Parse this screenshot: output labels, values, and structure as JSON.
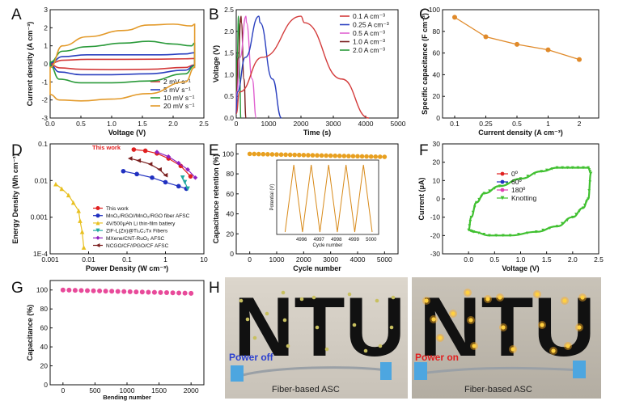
{
  "panel_labels": {
    "a": "A",
    "b": "B",
    "c": "C",
    "d": "D",
    "e": "E",
    "f": "F",
    "g": "G",
    "h": "H"
  },
  "chart_data": [
    {
      "panel": "A",
      "type": "line",
      "xlabel": "Voltage (V)",
      "ylabel": "Current density (A cm⁻³)",
      "xlim": [
        0,
        2.5
      ],
      "ylim": [
        -3,
        3
      ],
      "xticks": [
        "0.0",
        "0.5",
        "1.0",
        "1.5",
        "2.0",
        "2.5"
      ],
      "yticks": [
        "-3",
        "-2",
        "-1",
        "0",
        "1",
        "2",
        "3"
      ],
      "legend_position": "bottom-right",
      "series": [
        {
          "name": "2 mV s⁻¹",
          "color": "#d33a3a",
          "scale": 0.14,
          "upper": [
            [
              0,
              0.02
            ],
            [
              0.2,
              0.2
            ],
            [
              0.6,
              0.25
            ],
            [
              1.2,
              0.25
            ],
            [
              1.8,
              0.26
            ],
            [
              2.2,
              0.28
            ],
            [
              2.35,
              0.3
            ]
          ],
          "lower": [
            [
              2.35,
              -0.05
            ],
            [
              2.2,
              -0.2
            ],
            [
              1.6,
              -0.3
            ],
            [
              1.0,
              -0.32
            ],
            [
              0.5,
              -0.3
            ],
            [
              0.15,
              -0.22
            ],
            [
              0,
              -0.02
            ]
          ]
        },
        {
          "name": "5 mV s⁻¹",
          "color": "#2a3fbf",
          "scale": 0.3,
          "upper": [
            [
              0,
              0.05
            ],
            [
              0.2,
              0.4
            ],
            [
              0.6,
              0.5
            ],
            [
              1.2,
              0.5
            ],
            [
              1.8,
              0.5
            ],
            [
              2.2,
              0.55
            ],
            [
              2.35,
              0.62
            ]
          ],
          "lower": [
            [
              2.35,
              -0.08
            ],
            [
              2.2,
              -0.35
            ],
            [
              1.6,
              -0.55
            ],
            [
              1.0,
              -0.6
            ],
            [
              0.5,
              -0.6
            ],
            [
              0.15,
              -0.45
            ],
            [
              0,
              -0.05
            ]
          ]
        },
        {
          "name": "10 mV s⁻¹",
          "color": "#2a9a3a",
          "scale": 0.55,
          "upper": [
            [
              0,
              0.1
            ],
            [
              0.2,
              0.7
            ],
            [
              0.6,
              0.95
            ],
            [
              1.2,
              1.15
            ],
            [
              1.6,
              1.25
            ],
            [
              2.0,
              1.1
            ],
            [
              2.3,
              1.0
            ],
            [
              2.35,
              1.15
            ]
          ],
          "lower": [
            [
              2.35,
              -0.1
            ],
            [
              2.2,
              -0.55
            ],
            [
              1.6,
              -0.95
            ],
            [
              1.0,
              -1.05
            ],
            [
              0.5,
              -1.05
            ],
            [
              0.15,
              -0.85
            ],
            [
              0,
              -0.1
            ]
          ]
        },
        {
          "name": "20 mV s⁻¹",
          "color": "#e39a2a",
          "scale": 1.0,
          "upper": [
            [
              0,
              -0.2
            ],
            [
              0.2,
              1.0
            ],
            [
              0.6,
              1.5
            ],
            [
              1.2,
              1.85
            ],
            [
              1.6,
              2.15
            ],
            [
              2.0,
              2.2
            ],
            [
              2.3,
              2.1
            ],
            [
              2.35,
              2.2
            ]
          ],
          "lower": [
            [
              2.35,
              -0.2
            ],
            [
              2.2,
              -1.0
            ],
            [
              1.6,
              -1.65
            ],
            [
              1.0,
              -1.95
            ],
            [
              0.5,
              -2.05
            ],
            [
              0.15,
              -2.0
            ],
            [
              0,
              -1.7
            ]
          ]
        }
      ]
    },
    {
      "panel": "B",
      "type": "line",
      "xlabel": "Time (s)",
      "ylabel": "Voltage (V)",
      "xlim": [
        0,
        5000
      ],
      "ylim": [
        0,
        2.5
      ],
      "xticks": [
        "0",
        "1000",
        "2000",
        "3000",
        "4000",
        "5000"
      ],
      "yticks": [
        "0.0",
        "0.5",
        "1.0",
        "1.5",
        "2.0",
        "2.5"
      ],
      "legend_position": "top-right",
      "series": [
        {
          "name": "0.1 A cm⁻³",
          "color": "#d33a3a",
          "charge_end": 2000,
          "discharge_end": 4100
        },
        {
          "name": "0.25 A cm⁻³",
          "color": "#2a3fbf",
          "charge_end": 700,
          "discharge_end": 1400
        },
        {
          "name": "0.5 A cm⁻³",
          "color": "#e060d0",
          "charge_end": 300,
          "discharge_end": 620
        },
        {
          "name": "1.0 A cm⁻³",
          "color": "#7a1e1e",
          "charge_end": 150,
          "discharge_end": 300
        },
        {
          "name": "2.0 A cm⁻³",
          "color": "#2a9a3a",
          "charge_end": 70,
          "discharge_end": 140
        }
      ],
      "v_max": 2.35
    },
    {
      "panel": "C",
      "type": "line",
      "xlabel": "Current density (A cm⁻³)",
      "ylabel": "Specific capacitance (F cm⁻³)",
      "ylim": [
        0,
        100
      ],
      "categories": [
        "0.1",
        "0.25",
        "0.5",
        "1",
        "2"
      ],
      "yticks": [
        "0",
        "20",
        "40",
        "60",
        "80",
        "100"
      ],
      "color": "#e08a2a",
      "values": [
        93,
        75,
        68,
        63,
        54
      ]
    },
    {
      "panel": "D",
      "type": "scatter",
      "xlabel": "Power Density (W cm⁻³)",
      "ylabel": "Energy Density (Wh cm⁻³)",
      "xlim_log": [
        0.001,
        10
      ],
      "ylim_log": [
        0.0001,
        0.1
      ],
      "xticks": [
        "0.001",
        "0.01",
        "0.1",
        "1",
        "10"
      ],
      "yticks": [
        "1E-4",
        "0.001",
        "0.01",
        "0.1"
      ],
      "annotation": "This work",
      "legend_position": "bottom-left",
      "series": [
        {
          "name": "This work",
          "color": "#e02020",
          "marker": "circle",
          "points": [
            [
              0.15,
              0.07
            ],
            [
              0.3,
              0.065
            ],
            [
              0.6,
              0.055
            ],
            [
              1.2,
              0.04
            ],
            [
              2.5,
              0.025
            ],
            [
              4.5,
              0.013
            ]
          ]
        },
        {
          "name": "MnO₂/RGO//MnO₂/RGO fiber AFSC",
          "color": "#2030c0",
          "marker": "circle",
          "points": [
            [
              0.08,
              0.018
            ],
            [
              0.18,
              0.015
            ],
            [
              0.45,
              0.012
            ],
            [
              1.0,
              0.009
            ],
            [
              2.2,
              0.007
            ],
            [
              3.5,
              0.006
            ]
          ]
        },
        {
          "name": "4V/500μAh Li thin-film battery",
          "color": "#e8c020",
          "marker": "triangle",
          "points": [
            [
              0.0014,
              0.008
            ],
            [
              0.002,
              0.006
            ],
            [
              0.003,
              0.004
            ],
            [
              0.004,
              0.0025
            ],
            [
              0.0055,
              0.0015
            ],
            [
              0.006,
              0.0008
            ],
            [
              0.0068,
              0.0004
            ],
            [
              0.0075,
              0.00015
            ]
          ]
        },
        {
          "name": "ZIF-L(Zn)@Ti₃C₂Tx Fibers",
          "color": "#20a8a0",
          "marker": "triangle-down",
          "points": [
            [
              2.8,
              0.012
            ],
            [
              3.2,
              0.009
            ],
            [
              3.8,
              0.006
            ]
          ]
        },
        {
          "name": "MXene/CNT-RuO₂ AFSC",
          "color": "#9020c0",
          "marker": "diamond",
          "points": [
            [
              0.6,
              0.06
            ],
            [
              1.2,
              0.045
            ],
            [
              2.2,
              0.03
            ],
            [
              3.8,
              0.02
            ],
            [
              6,
              0.012
            ]
          ]
        },
        {
          "name": "NCGO/CF//PGO/CF AFSC",
          "color": "#7a1e1e",
          "marker": "triangle-left",
          "points": [
            [
              0.12,
              0.04
            ],
            [
              0.2,
              0.035
            ],
            [
              0.4,
              0.028
            ],
            [
              0.7,
              0.02
            ],
            [
              1.0,
              0.014
            ]
          ]
        }
      ]
    },
    {
      "panel": "E",
      "type": "scatter",
      "xlabel": "Cycle number",
      "ylabel": "Capacitance retention (%)",
      "xlim": [
        -500,
        5500
      ],
      "ylim": [
        0,
        110
      ],
      "xticks": [
        "0",
        "1000",
        "2000",
        "3000",
        "4000",
        "5000"
      ],
      "yticks": [
        "0",
        "20",
        "40",
        "60",
        "80",
        "100"
      ],
      "color": "#e8a020",
      "retention_start": 100,
      "retention_end": 97,
      "inset": {
        "xlabel": "Cycle number",
        "ylabel": "Potential (V)",
        "xticks": [
          "4996",
          "4997",
          "4998",
          "4999",
          "5000"
        ],
        "color": "#d88a1a",
        "cycles": 5,
        "v_max": 2.35
      }
    },
    {
      "panel": "F",
      "type": "line",
      "xlabel": "Voltage (V)",
      "ylabel": "Current (μA)",
      "xlim": [
        -0.5,
        2.5
      ],
      "ylim": [
        -30,
        30
      ],
      "xticks": [
        "0.0",
        "0.5",
        "1.0",
        "1.5",
        "2.0",
        "2.5"
      ],
      "yticks": [
        "-30",
        "-20",
        "-10",
        "0",
        "10",
        "20",
        "30"
      ],
      "legend_position": "center",
      "series": [
        {
          "name": "0º",
          "color": "#e02020",
          "marker": "circle"
        },
        {
          "name": "60º",
          "color": "#2030c0",
          "marker": "circle"
        },
        {
          "name": "180º",
          "color": "#e040b0",
          "marker": "circle"
        },
        {
          "name": "Knotting",
          "color": "#40c030",
          "marker": "triangle-down"
        }
      ],
      "upper": [
        [
          0,
          -17
        ],
        [
          0.05,
          -10
        ],
        [
          0.15,
          -2
        ],
        [
          0.3,
          3
        ],
        [
          0.6,
          7
        ],
        [
          1.0,
          11
        ],
        [
          1.4,
          15
        ],
        [
          1.7,
          17
        ],
        [
          2.0,
          17
        ],
        [
          2.3,
          17
        ],
        [
          2.35,
          14
        ]
      ],
      "lower": [
        [
          2.35,
          14
        ],
        [
          2.3,
          0
        ],
        [
          2.2,
          -5
        ],
        [
          2.0,
          -10
        ],
        [
          1.7,
          -15
        ],
        [
          1.3,
          -18
        ],
        [
          0.8,
          -20
        ],
        [
          0.4,
          -20
        ],
        [
          0.1,
          -18
        ],
        [
          0,
          -17
        ]
      ]
    },
    {
      "panel": "G",
      "type": "scatter",
      "xlabel": "Bending number",
      "ylabel": "Capacitance (%)",
      "xlim": [
        -200,
        2200
      ],
      "ylim": [
        0,
        110
      ],
      "xticks": [
        "0",
        "500",
        "1000",
        "1500",
        "2000"
      ],
      "yticks": [
        "0",
        "20",
        "40",
        "60",
        "80",
        "100"
      ],
      "color": "#e84a9a",
      "retention_start": 100,
      "retention_end": 96.5,
      "n_points": 22
    }
  ],
  "photo": {
    "left_letters": "NTU",
    "right_letters": "NTU",
    "left_status": "Power off",
    "right_status": "Power on",
    "left_status_color": "#2a3fd0",
    "right_status_color": "#e02020",
    "left_caption": "Fiber-based ASC",
    "right_caption": "Fiber-based ASC"
  }
}
